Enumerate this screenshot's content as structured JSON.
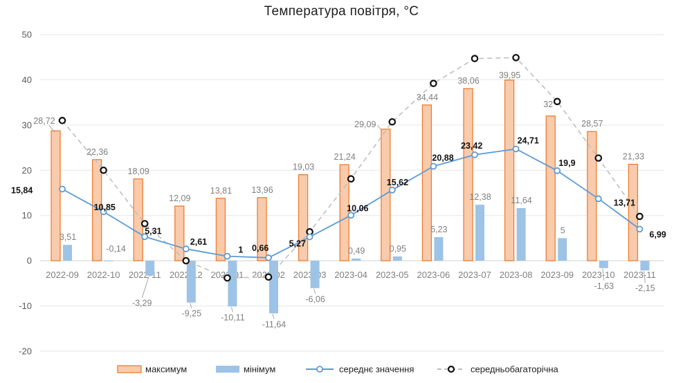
{
  "chart_data": {
    "type": "bar",
    "title": "Температура  повітря,  °C",
    "categories": [
      "2022-09",
      "2022-10",
      "2022-11",
      "2022-12",
      "2023-01",
      "2023-02",
      "2023-03",
      "2023-04",
      "2023-05",
      "2023-06",
      "2023-07",
      "2023-08",
      "2023-09",
      "2023-10",
      "2023-11"
    ],
    "ylim": [
      -20,
      50
    ],
    "yticks": [
      -20,
      -10,
      0,
      10,
      20,
      30,
      40,
      50
    ],
    "grid": true,
    "legend_position": "bottom",
    "series": [
      {
        "name": "максимум",
        "kind": "bar",
        "color": "#ED7D31",
        "fill": "#F8CBAD",
        "values": [
          28.72,
          22.36,
          18.09,
          12.09,
          13.81,
          13.96,
          19.03,
          21.24,
          29.09,
          34.44,
          38.06,
          39.95,
          32,
          28.57,
          21.33
        ]
      },
      {
        "name": "мінімум",
        "kind": "bar",
        "color": "#9DC3E6",
        "values": [
          3.51,
          -0.14,
          -3.29,
          -9.25,
          -10.11,
          -11.64,
          -6.06,
          0.49,
          0.95,
          5.23,
          12.38,
          11.64,
          5,
          -1.63,
          -2.15
        ]
      },
      {
        "name": "середнє значення",
        "kind": "line",
        "color": "#5B9BD5",
        "values": [
          15.84,
          10.85,
          5.31,
          2.61,
          1,
          0.66,
          5.27,
          10.06,
          15.62,
          20.88,
          23.42,
          24.71,
          19.9,
          13.71,
          6.99
        ]
      },
      {
        "name": "середньобагаторічна",
        "kind": "dashed-line",
        "color": "#BFBFBF",
        "values": [
          31,
          20,
          8.2,
          0,
          -3.8,
          -3.6,
          6.4,
          18.1,
          30.7,
          39.2,
          44.7,
          44.9,
          35.2,
          22.7,
          9.8
        ]
      }
    ],
    "labels": {
      "max": [
        "28,72",
        "22,36",
        "18,09",
        "12,09",
        "13,81",
        "13,96",
        "19,03",
        "21,24",
        "29,09",
        "34,44",
        "38,06",
        "39,95",
        "32",
        "28,57",
        "21,33"
      ],
      "min": [
        "3,51",
        "-0,14",
        "-3,29",
        "-9,25",
        "-10,11",
        "-11,64",
        "-6,06",
        "0,49",
        "0,95",
        "5,23",
        "12,38",
        "11,64",
        "5",
        "-1,63",
        "-2,15"
      ],
      "avg": [
        "15,84",
        "10,85",
        "5,31",
        "2,61",
        "1",
        "0,66",
        "5,27",
        "10,06",
        "15,62",
        "20,88",
        "23,42",
        "24,71",
        "19,9",
        "13,71",
        "6,99"
      ]
    }
  }
}
